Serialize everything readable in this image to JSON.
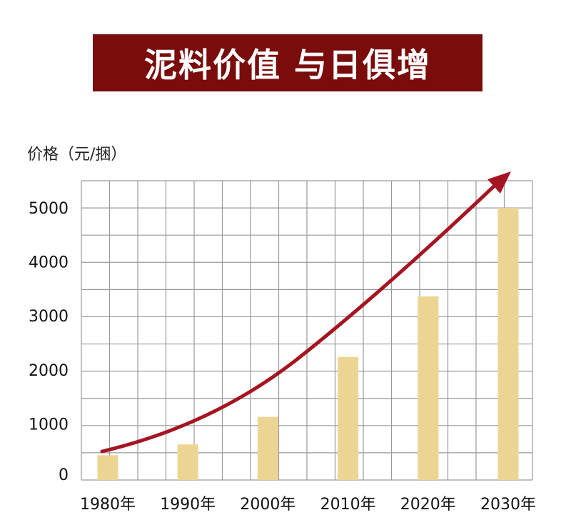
{
  "chart_data": {
    "type": "bar",
    "title": "泥料价值 与日俱增",
    "ylabel": "价格（元/捆）",
    "xlabel": "",
    "categories": [
      "1980年",
      "1990年",
      "2000年",
      "2010年",
      "2020年",
      "2030年"
    ],
    "values": [
      420,
      620,
      1130,
      2240,
      3360,
      5000
    ],
    "ylim": [
      0,
      5500
    ],
    "yticks": [
      0,
      1000,
      2000,
      3000,
      4000,
      5000
    ],
    "grid": true,
    "legend": "none",
    "trend_arrow": true
  },
  "colors": {
    "banner_bg": "#7a0c0c",
    "bar": "#ecd592",
    "grid": "#9a9a9a",
    "arrow": "#a41521"
  }
}
